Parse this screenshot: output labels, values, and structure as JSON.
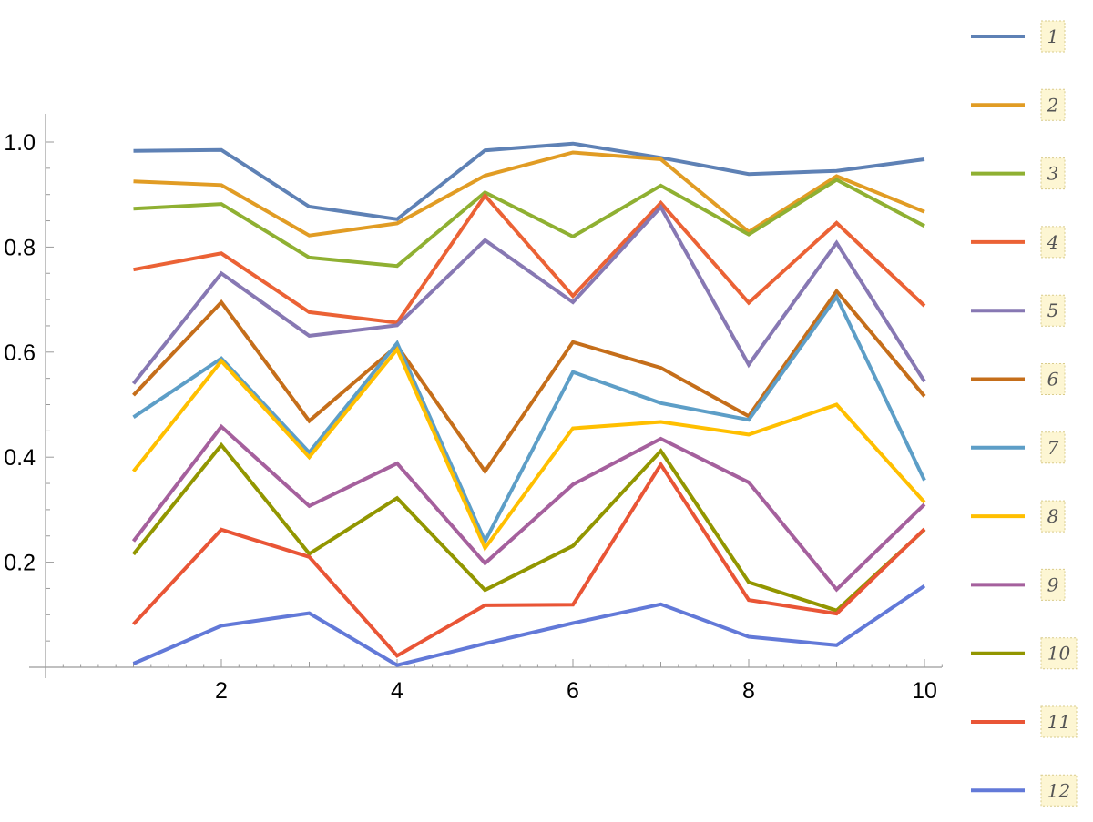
{
  "chart_data": {
    "type": "line",
    "title": "",
    "xlabel": "",
    "ylabel": "",
    "xlim": [
      0.03,
      10.2
    ],
    "ylim": [
      0.0,
      1.05
    ],
    "x_ticks": [
      "2",
      "4",
      "6",
      "8",
      "10"
    ],
    "y_ticks": [
      "0.2",
      "0.4",
      "0.6",
      "0.8",
      "1.0"
    ],
    "x": [
      1,
      2,
      3,
      4,
      5,
      6,
      7,
      8,
      9,
      10
    ],
    "legend_position": "right",
    "series": [
      {
        "name": "1",
        "color": "#5e81b5",
        "values": [
          0.983,
          0.985,
          0.877,
          0.853,
          0.984,
          0.997,
          0.97,
          0.939,
          0.945,
          0.967
        ]
      },
      {
        "name": "2",
        "color": "#e19c24",
        "values": [
          0.925,
          0.918,
          0.822,
          0.845,
          0.936,
          0.98,
          0.967,
          0.829,
          0.935,
          0.867
        ]
      },
      {
        "name": "3",
        "color": "#8fb032",
        "values": [
          0.873,
          0.882,
          0.78,
          0.764,
          0.904,
          0.82,
          0.917,
          0.824,
          0.928,
          0.84
        ]
      },
      {
        "name": "4",
        "color": "#eb6235",
        "values": [
          0.757,
          0.788,
          0.676,
          0.656,
          0.898,
          0.707,
          0.884,
          0.694,
          0.846,
          0.688
        ]
      },
      {
        "name": "5",
        "color": "#8778b3",
        "values": [
          0.54,
          0.75,
          0.631,
          0.651,
          0.813,
          0.695,
          0.876,
          0.576,
          0.808,
          0.544
        ]
      },
      {
        "name": "6",
        "color": "#c56e1a",
        "values": [
          0.518,
          0.695,
          0.469,
          0.612,
          0.373,
          0.619,
          0.57,
          0.478,
          0.716,
          0.516
        ]
      },
      {
        "name": "7",
        "color": "#5d9ec7",
        "values": [
          0.476,
          0.588,
          0.409,
          0.617,
          0.24,
          0.562,
          0.503,
          0.471,
          0.705,
          0.356
        ]
      },
      {
        "name": "8",
        "color": "#ffbf00",
        "values": [
          0.373,
          0.583,
          0.4,
          0.605,
          0.227,
          0.455,
          0.467,
          0.443,
          0.5,
          0.314
        ]
      },
      {
        "name": "9",
        "color": "#a5609d",
        "values": [
          0.24,
          0.458,
          0.307,
          0.388,
          0.198,
          0.348,
          0.435,
          0.352,
          0.148,
          0.31
        ]
      },
      {
        "name": "10",
        "color": "#929600",
        "values": [
          0.215,
          0.423,
          0.216,
          0.322,
          0.147,
          0.231,
          0.412,
          0.162,
          0.108,
          0.262
        ]
      },
      {
        "name": "11",
        "color": "#e95536",
        "values": [
          0.082,
          0.262,
          0.21,
          0.022,
          0.118,
          0.119,
          0.386,
          0.128,
          0.102,
          0.263
        ]
      },
      {
        "name": "12",
        "color": "#6279d8",
        "values": [
          0.007,
          0.079,
          0.103,
          0.004,
          0.045,
          0.084,
          0.12,
          0.058,
          0.042,
          0.155
        ]
      }
    ]
  }
}
